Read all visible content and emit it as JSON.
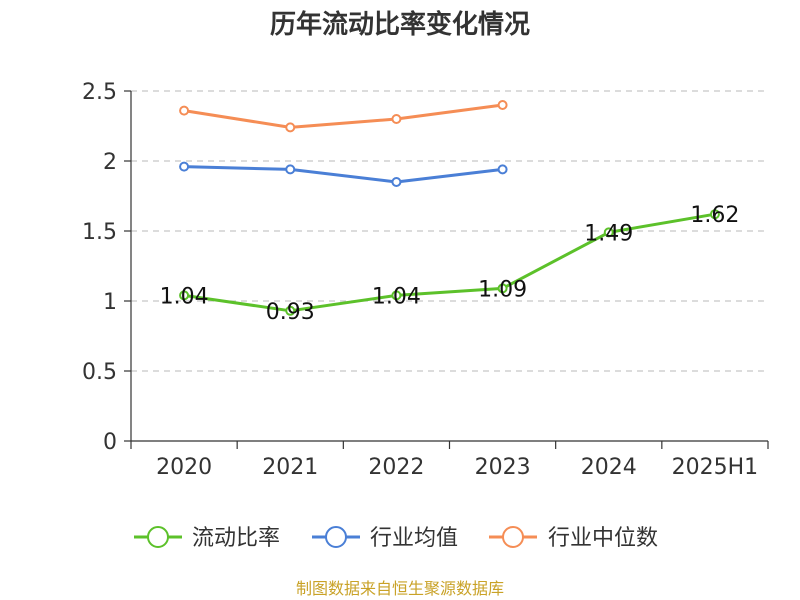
{
  "chart_data": {
    "type": "line",
    "title": "历年流动比率变化情况",
    "categories": [
      "2020",
      "2021",
      "2022",
      "2023",
      "2024",
      "2025H1"
    ],
    "ylim": [
      0,
      2.5
    ],
    "yticks": [
      "0",
      "0.5",
      "1",
      "1.5",
      "2",
      "2.5"
    ],
    "grid": true,
    "legend_position": "bottom",
    "series": [
      {
        "name": "流动比率",
        "color": "#5cc12a",
        "values": [
          1.04,
          0.93,
          1.04,
          1.09,
          1.49,
          1.62
        ],
        "labels": [
          "1.04",
          "0.93",
          "1.04",
          "1.09",
          "1.49",
          "1.62"
        ]
      },
      {
        "name": "行业均值",
        "color": "#4a7fd6",
        "values": [
          1.96,
          1.94,
          1.85,
          1.94,
          null,
          null
        ]
      },
      {
        "name": "行业中位数",
        "color": "#f58d55",
        "values": [
          2.36,
          2.24,
          2.3,
          2.4,
          null,
          null
        ]
      }
    ]
  },
  "source": "制图数据来自恒生聚源数据库"
}
